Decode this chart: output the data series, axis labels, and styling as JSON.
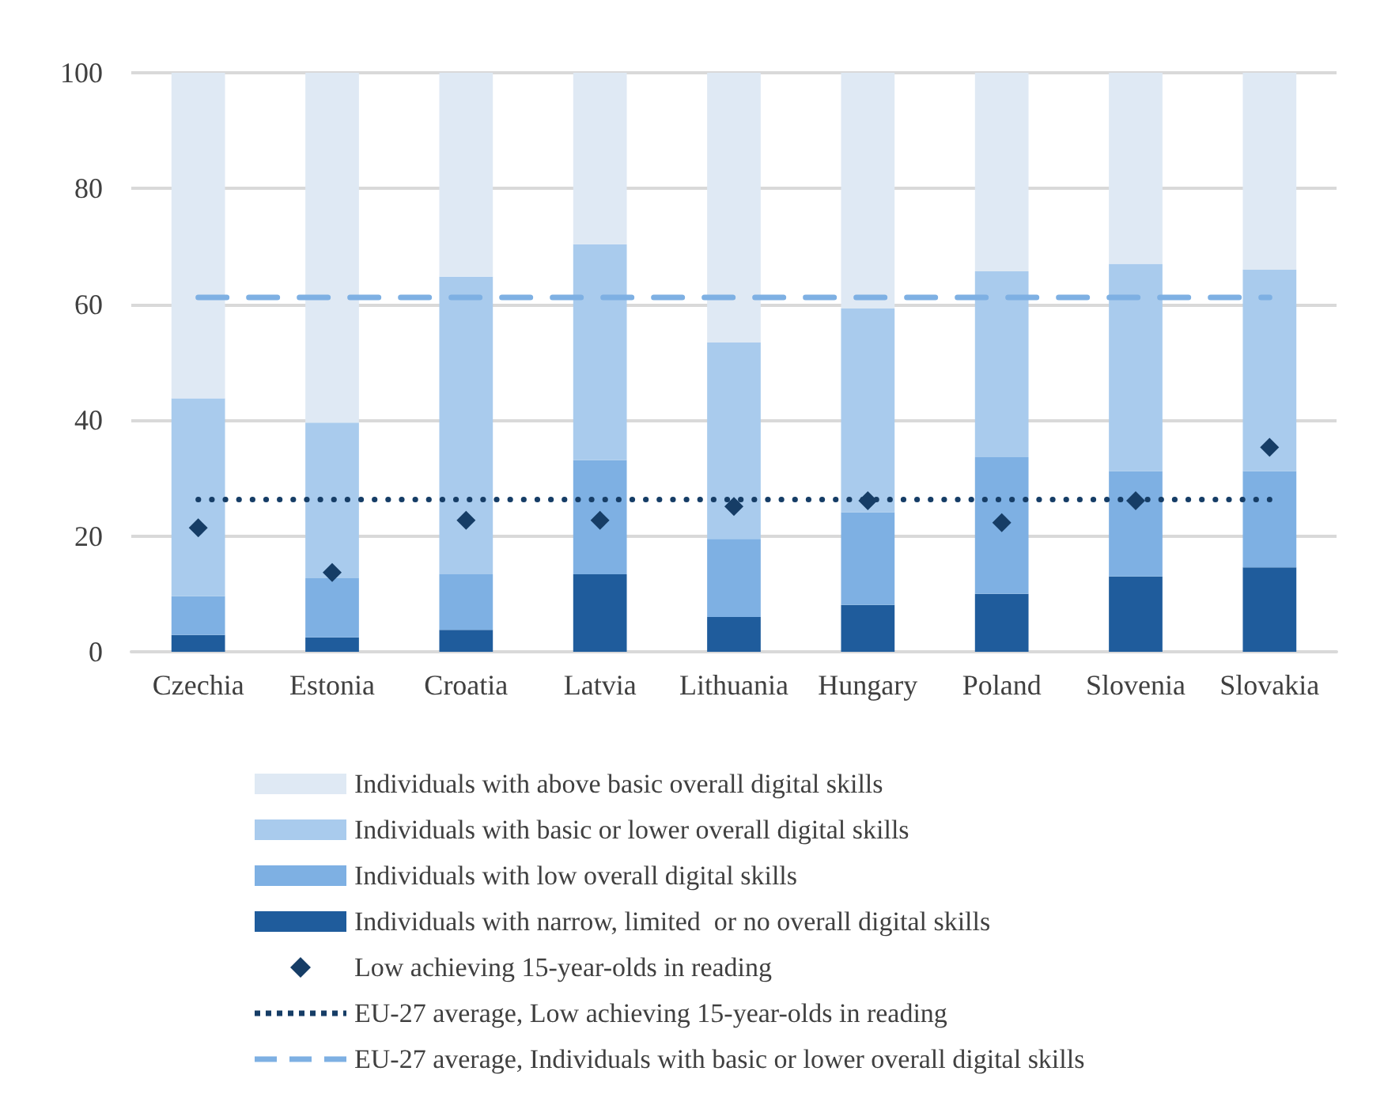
{
  "chart_data": {
    "type": "bar",
    "stacked": true,
    "categories": [
      "Czechia",
      "Estonia",
      "Croatia",
      "Latvia",
      "Lithuania",
      "Hungary",
      "Poland",
      "Slovenia",
      "Slovakia"
    ],
    "series": [
      {
        "name": "Individuals with narrow, limited  or no overall digital skills",
        "color": "#1f5c9c",
        "values": [
          2.9,
          2.5,
          3.8,
          13.4,
          6.0,
          8.1,
          10.0,
          13.0,
          14.6
        ]
      },
      {
        "name": "Individuals with low overall digital skills",
        "color": "#7eb0e3",
        "values": [
          6.7,
          10.2,
          9.6,
          19.7,
          13.5,
          16.0,
          23.6,
          18.2,
          16.6
        ]
      },
      {
        "name": "Individuals with basic or lower overall digital skills",
        "color": "#a9cbed",
        "values": [
          34.2,
          26.9,
          51.4,
          37.3,
          33.9,
          35.2,
          32.1,
          35.8,
          34.8
        ]
      },
      {
        "name": "Individuals with above basic overall digital skills",
        "color": "#dfe9f4",
        "values": [
          56.2,
          60.4,
          35.2,
          29.6,
          46.6,
          40.7,
          34.3,
          33.0,
          34.0
        ]
      },
      {
        "name": "Low achieving 15-year-olds in reading",
        "type": "scatter",
        "marker": "diamond",
        "color": "#163d66",
        "values": [
          21.4,
          13.7,
          22.7,
          22.7,
          25.1,
          26.1,
          22.3,
          26.1,
          35.3
        ]
      },
      {
        "name": "EU-27 average, Low achieving 15-year-olds in reading",
        "type": "line",
        "line_style": "dotted",
        "marker": "none",
        "color": "#163d66",
        "values": [
          26.3,
          26.3,
          26.3,
          26.3,
          26.3,
          26.3,
          26.3,
          26.3,
          26.3
        ]
      },
      {
        "name": "EU-27 average, Individuals with basic or lower overall digital skills",
        "type": "line",
        "line_style": "dashed",
        "marker": "none",
        "color": "#7eb0e3",
        "values": [
          61.2,
          61.2,
          61.2,
          61.2,
          61.2,
          61.2,
          61.2,
          61.2,
          61.2
        ]
      }
    ],
    "ylim": [
      0,
      100
    ],
    "yticks": [
      0,
      20,
      40,
      60,
      80,
      100
    ],
    "grid": "y",
    "legend": "bottom"
  }
}
